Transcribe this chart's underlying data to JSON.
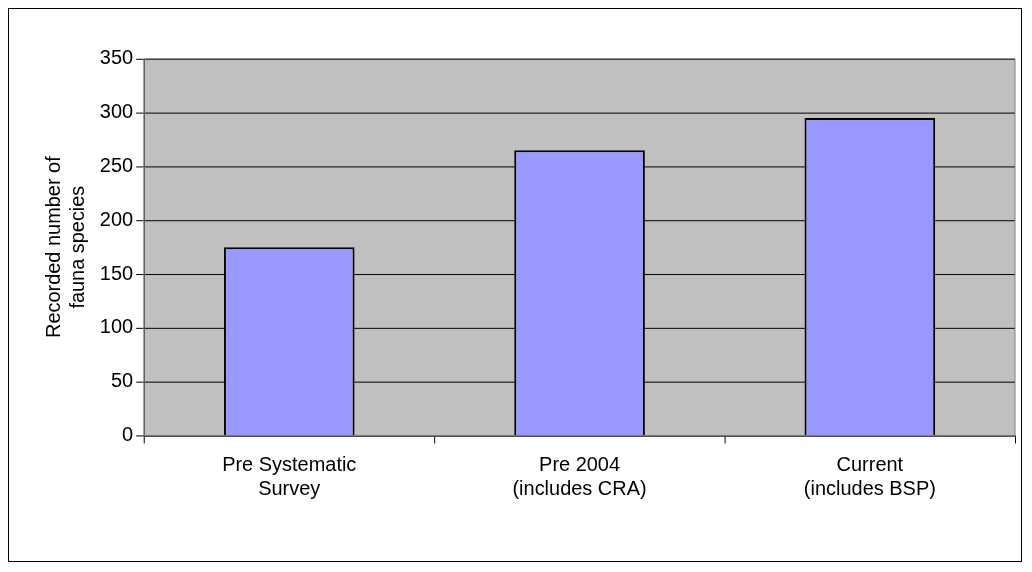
{
  "chart_data": {
    "type": "bar",
    "ylabel": "Recorded number of fauna species",
    "categories": [
      "Pre Systematic Survey",
      "Pre 2004 (includes CRA)",
      "Current (includes BSP)"
    ],
    "values": [
      175,
      265,
      295
    ],
    "color": "#9999ff",
    "ylim": [
      0,
      350
    ],
    "yticks": [
      0,
      50,
      100,
      150,
      200,
      250,
      300,
      350
    ],
    "grid": "y",
    "legend": false
  }
}
